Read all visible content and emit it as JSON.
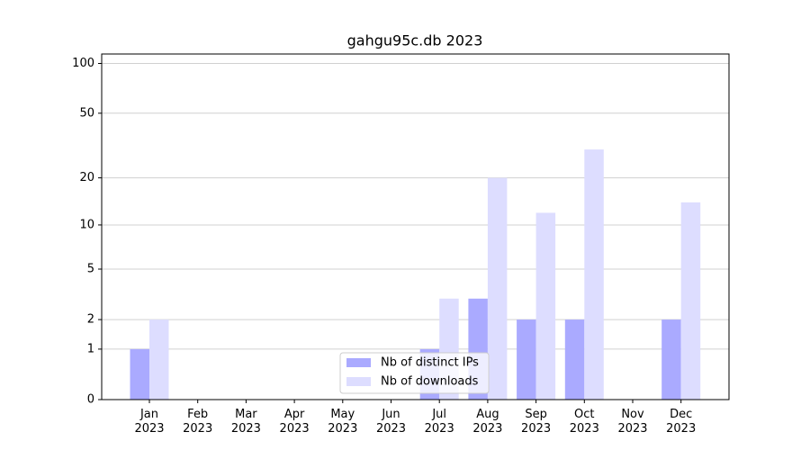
{
  "chart_data": {
    "type": "bar",
    "title": "gahgu95c.db 2023",
    "categories": [
      "Jan\n2023",
      "Feb\n2023",
      "Mar\n2023",
      "Apr\n2023",
      "May\n2023",
      "Jun\n2023",
      "Jul\n2023",
      "Aug\n2023",
      "Sep\n2023",
      "Oct\n2023",
      "Nov\n2023",
      "Dec\n2023"
    ],
    "series": [
      {
        "name": "Nb of distinct IPs",
        "color": "#aaaaff",
        "values": [
          1,
          0,
          0,
          0,
          0,
          0,
          1,
          3,
          2,
          2,
          0,
          2
        ]
      },
      {
        "name": "Nb of downloads",
        "color": "#ddddff",
        "values": [
          2,
          0,
          0,
          0,
          0,
          0,
          3,
          20,
          12,
          30,
          0,
          14
        ]
      }
    ],
    "yscale": "log1p",
    "ylim": [
      0,
      114
    ],
    "yticks": [
      0,
      1,
      2,
      5,
      10,
      20,
      50,
      100
    ],
    "grid": true,
    "legend": "lower center"
  }
}
